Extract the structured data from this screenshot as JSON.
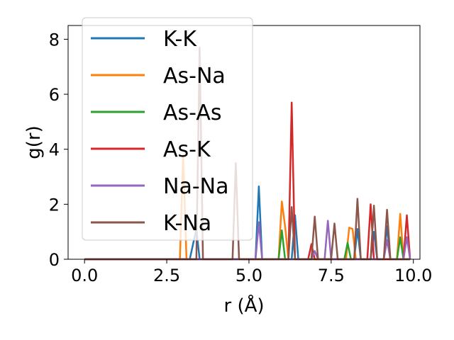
{
  "chart_data": {
    "type": "line",
    "title": "",
    "xlabel": "r (Å)",
    "ylabel": "g(r)",
    "xlim": [
      -0.5,
      10.2
    ],
    "ylim": [
      0,
      8.5
    ],
    "xticks": [
      0.0,
      2.5,
      5.0,
      7.5,
      10.0
    ],
    "xtick_labels": [
      "0.0",
      "2.5",
      "5.0",
      "7.5",
      "10.0"
    ],
    "yticks": [
      0,
      2,
      4,
      6,
      8
    ],
    "ytick_labels": [
      "0",
      "2",
      "4",
      "6",
      "8"
    ],
    "grid": false,
    "legend": "upper-left",
    "series": [
      {
        "name": "K-K",
        "color": "#1f77b4",
        "points": [
          [
            0.0,
            0
          ],
          [
            3.2,
            0
          ],
          [
            3.4,
            1.1
          ],
          [
            3.5,
            0
          ],
          [
            5.2,
            0
          ],
          [
            5.3,
            2.65
          ],
          [
            5.4,
            0
          ],
          [
            6.3,
            0
          ],
          [
            6.4,
            1.6
          ],
          [
            6.5,
            0
          ],
          [
            8.2,
            0
          ],
          [
            8.3,
            1.1
          ],
          [
            8.4,
            0
          ],
          [
            8.7,
            0
          ],
          [
            8.8,
            1.0
          ],
          [
            8.9,
            0
          ],
          [
            9.1,
            0
          ],
          [
            9.2,
            1.2
          ],
          [
            9.3,
            0
          ],
          [
            9.9,
            0
          ]
        ]
      },
      {
        "name": "As-Na",
        "color": "#ff7f0e",
        "points": [
          [
            0.0,
            0
          ],
          [
            2.9,
            0
          ],
          [
            3.0,
            3.8
          ],
          [
            3.1,
            0
          ],
          [
            5.9,
            0
          ],
          [
            6.0,
            2.1
          ],
          [
            6.1,
            1.2
          ],
          [
            6.2,
            0
          ],
          [
            7.95,
            0
          ],
          [
            8.05,
            1.15
          ],
          [
            8.15,
            1.1
          ],
          [
            8.25,
            0
          ],
          [
            9.5,
            0
          ],
          [
            9.6,
            1.65
          ],
          [
            9.7,
            0
          ],
          [
            9.9,
            0
          ]
        ]
      },
      {
        "name": "As-As",
        "color": "#2ca02c",
        "points": [
          [
            0.0,
            0
          ],
          [
            5.9,
            0
          ],
          [
            6.0,
            1.05
          ],
          [
            6.1,
            0
          ],
          [
            7.9,
            0
          ],
          [
            8.0,
            0.6
          ],
          [
            8.1,
            0
          ],
          [
            9.5,
            0
          ],
          [
            9.6,
            0.8
          ],
          [
            9.7,
            0
          ],
          [
            9.9,
            0
          ]
        ]
      },
      {
        "name": "As-K",
        "color": "#d62728",
        "points": [
          [
            0.0,
            0
          ],
          [
            6.2,
            0
          ],
          [
            6.3,
            5.7
          ],
          [
            6.4,
            0
          ],
          [
            6.8,
            0
          ],
          [
            6.9,
            0.55
          ],
          [
            7.0,
            0
          ],
          [
            8.6,
            0
          ],
          [
            8.7,
            2.0
          ],
          [
            8.8,
            0
          ],
          [
            9.7,
            0
          ],
          [
            9.8,
            1.6
          ],
          [
            9.9,
            0
          ]
        ]
      },
      {
        "name": "Na-Na",
        "color": "#9467bd",
        "points": [
          [
            0.0,
            0
          ],
          [
            5.2,
            0
          ],
          [
            5.3,
            1.35
          ],
          [
            5.4,
            0
          ],
          [
            6.9,
            0
          ],
          [
            7.0,
            0.3
          ],
          [
            7.1,
            0
          ],
          [
            7.3,
            0
          ],
          [
            7.4,
            1.4
          ],
          [
            7.5,
            0
          ],
          [
            9.1,
            0
          ],
          [
            9.2,
            0.7
          ],
          [
            9.3,
            0
          ],
          [
            9.7,
            0
          ],
          [
            9.8,
            0.8
          ],
          [
            9.9,
            0
          ]
        ]
      },
      {
        "name": "K-Na",
        "color": "#8c564b",
        "points": [
          [
            0.0,
            0
          ],
          [
            3.4,
            0
          ],
          [
            3.5,
            7.7
          ],
          [
            3.6,
            0
          ],
          [
            4.5,
            0
          ],
          [
            4.6,
            3.5
          ],
          [
            4.7,
            0
          ],
          [
            6.2,
            0
          ],
          [
            6.3,
            1.9
          ],
          [
            6.4,
            0
          ],
          [
            6.9,
            0
          ],
          [
            7.0,
            1.55
          ],
          [
            7.1,
            0
          ],
          [
            7.5,
            0
          ],
          [
            7.6,
            1.3
          ],
          [
            7.7,
            0
          ],
          [
            8.2,
            0
          ],
          [
            8.3,
            2.2
          ],
          [
            8.4,
            0
          ],
          [
            8.7,
            0
          ],
          [
            8.8,
            1.95
          ],
          [
            8.9,
            0
          ],
          [
            9.1,
            0
          ],
          [
            9.2,
            1.8
          ],
          [
            9.3,
            0
          ],
          [
            9.9,
            0
          ]
        ]
      }
    ]
  }
}
